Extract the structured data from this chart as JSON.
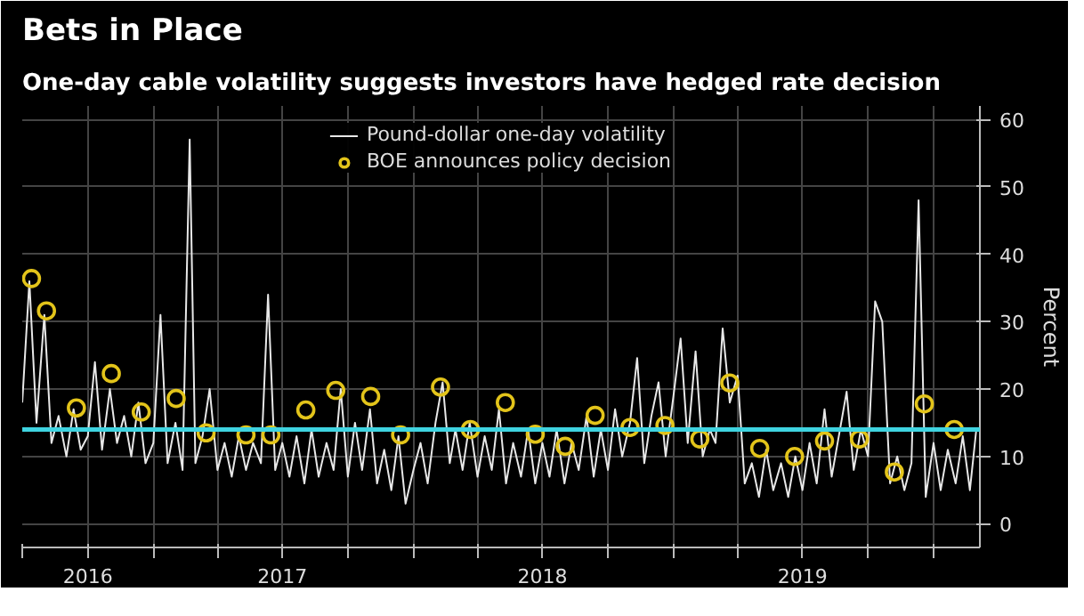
{
  "chart_data": {
    "type": "line",
    "title": "Bets in Place",
    "subtitle": "One-day cable volatility suggests investors have hedged rate decision",
    "ylabel": "Percent",
    "xlim": [
      "2016-07-01",
      "2020-03-06"
    ],
    "ylim": [
      -3.5,
      62
    ],
    "yticks": [
      0,
      10,
      20,
      30,
      40,
      50,
      60
    ],
    "xticks": [
      {
        "value": "2016-07-01",
        "label": null
      },
      {
        "value": "2016-10-01",
        "label": "2016"
      },
      {
        "value": "2017-01-01",
        "label": null
      },
      {
        "value": "2017-04-01",
        "label": null
      },
      {
        "value": "2017-07-01",
        "label": "2017"
      },
      {
        "value": "2017-10-01",
        "label": null
      },
      {
        "value": "2018-01-01",
        "label": null
      },
      {
        "value": "2018-04-01",
        "label": null
      },
      {
        "value": "2018-07-01",
        "label": "2018"
      },
      {
        "value": "2018-10-01",
        "label": null
      },
      {
        "value": "2019-01-01",
        "label": null
      },
      {
        "value": "2019-04-01",
        "label": null
      },
      {
        "value": "2019-07-01",
        "label": "2019"
      },
      {
        "value": "2019-10-01",
        "label": null
      },
      {
        "value": "2020-01-01",
        "label": null
      }
    ],
    "grid": true,
    "legend": "top",
    "ref_lines": [
      {
        "axis": "y",
        "value": 14,
        "color": "#3fd3e0"
      }
    ],
    "series": [
      {
        "name": "Pound-dollar one-day volatility",
        "color": "#e8e8e8",
        "marker": "none",
        "x": [
          "2016-07-01",
          "2016-07-11",
          "2016-07-21",
          "2016-08-01",
          "2016-08-11",
          "2016-08-21",
          "2016-09-01",
          "2016-09-11",
          "2016-09-21",
          "2016-10-01",
          "2016-10-11",
          "2016-10-21",
          "2016-11-01",
          "2016-11-11",
          "2016-11-21",
          "2016-12-01",
          "2016-12-11",
          "2016-12-21",
          "2017-01-01",
          "2017-01-11",
          "2017-01-21",
          "2017-02-01",
          "2017-02-11",
          "2017-02-21",
          "2017-03-01",
          "2017-03-11",
          "2017-03-21",
          "2017-04-01",
          "2017-04-11",
          "2017-04-21",
          "2017-05-01",
          "2017-05-11",
          "2017-05-21",
          "2017-06-01",
          "2017-06-11",
          "2017-06-21",
          "2017-07-01",
          "2017-07-11",
          "2017-07-21",
          "2017-08-01",
          "2017-08-11",
          "2017-08-21",
          "2017-09-01",
          "2017-09-11",
          "2017-09-21",
          "2017-10-01",
          "2017-10-11",
          "2017-10-21",
          "2017-11-01",
          "2017-11-11",
          "2017-11-21",
          "2017-12-01",
          "2017-12-11",
          "2017-12-21",
          "2018-01-01",
          "2018-01-11",
          "2018-01-21",
          "2018-02-01",
          "2018-02-11",
          "2018-02-21",
          "2018-03-01",
          "2018-03-11",
          "2018-03-21",
          "2018-04-01",
          "2018-04-11",
          "2018-04-21",
          "2018-05-01",
          "2018-05-11",
          "2018-05-21",
          "2018-06-01",
          "2018-06-11",
          "2018-06-21",
          "2018-07-01",
          "2018-07-11",
          "2018-07-21",
          "2018-08-01",
          "2018-08-11",
          "2018-08-21",
          "2018-09-01",
          "2018-09-11",
          "2018-09-21",
          "2018-10-01",
          "2018-10-11",
          "2018-10-21",
          "2018-11-01",
          "2018-11-11",
          "2018-11-21",
          "2018-12-01",
          "2018-12-11",
          "2018-12-21",
          "2019-01-01",
          "2019-01-11",
          "2019-01-21",
          "2019-02-01",
          "2019-02-11",
          "2019-02-21",
          "2019-03-01",
          "2019-03-11",
          "2019-03-21",
          "2019-04-01",
          "2019-04-11",
          "2019-04-21",
          "2019-05-01",
          "2019-05-11",
          "2019-05-21",
          "2019-06-01",
          "2019-06-11",
          "2019-06-21",
          "2019-07-01",
          "2019-07-11",
          "2019-07-21",
          "2019-08-01",
          "2019-08-11",
          "2019-08-21",
          "2019-09-01",
          "2019-09-11",
          "2019-09-21",
          "2019-10-01",
          "2019-10-11",
          "2019-10-21",
          "2019-11-01",
          "2019-11-11",
          "2019-11-21",
          "2019-12-01",
          "2019-12-11",
          "2019-12-21",
          "2020-01-01",
          "2020-01-11",
          "2020-01-21",
          "2020-02-01",
          "2020-02-11",
          "2020-02-21",
          "2020-03-01"
        ],
        "values": [
          18,
          36,
          15,
          31,
          12,
          16,
          10,
          17,
          11,
          13,
          24,
          11,
          20,
          12,
          16,
          10,
          18,
          9,
          12,
          31,
          9,
          15,
          8,
          57,
          9,
          13,
          20,
          8,
          12,
          7,
          13,
          8,
          12,
          9,
          34,
          8,
          12,
          7,
          13,
          6,
          14,
          7,
          12,
          8,
          20,
          7,
          15,
          8,
          17,
          6,
          11,
          5,
          13,
          3,
          8,
          12,
          6,
          15,
          21,
          9,
          14,
          8,
          15,
          7,
          13,
          8,
          17,
          6,
          12,
          7,
          14,
          6,
          12,
          7,
          14,
          6,
          12,
          8,
          16,
          7,
          14,
          8,
          17,
          10,
          15,
          24.6,
          9,
          16,
          21,
          10,
          19,
          27.5,
          12,
          25.6,
          10,
          14,
          12,
          29,
          18,
          22,
          6,
          9,
          4,
          11,
          5,
          9,
          4,
          10,
          5,
          12,
          6,
          17,
          7,
          13,
          19.6,
          8,
          14,
          10,
          33,
          30,
          6,
          10,
          5,
          9,
          48,
          4,
          12,
          5,
          11,
          6,
          13,
          5,
          14
        ]
      },
      {
        "name": "BOE announces policy decision",
        "type": "scatter",
        "color": "#e3c41a",
        "marker": "circle",
        "x": [
          "2016-07-14",
          "2016-08-04",
          "2016-09-15",
          "2016-11-03",
          "2016-12-15",
          "2017-02-02",
          "2017-03-16",
          "2017-05-11",
          "2017-06-15",
          "2017-08-03",
          "2017-09-14",
          "2017-11-02",
          "2017-12-14",
          "2018-02-08",
          "2018-03-22",
          "2018-05-10",
          "2018-06-21",
          "2018-08-02",
          "2018-09-13",
          "2018-11-01",
          "2018-12-20",
          "2019-02-07",
          "2019-03-21",
          "2019-05-02",
          "2019-06-20",
          "2019-08-01",
          "2019-09-19",
          "2019-11-07",
          "2019-12-19",
          "2020-01-30"
        ],
        "values": [
          36.4,
          31.6,
          17.2,
          22.3,
          16.6,
          18.6,
          13.5,
          13.2,
          13.2,
          16.9,
          19.8,
          18.9,
          13.2,
          20.3,
          14.0,
          18.0,
          13.3,
          11.5,
          16.1,
          14.3,
          14.6,
          12.6,
          20.9,
          11.2,
          10.0,
          12.3,
          12.6,
          7.7,
          17.8,
          14.0
        ]
      }
    ]
  }
}
